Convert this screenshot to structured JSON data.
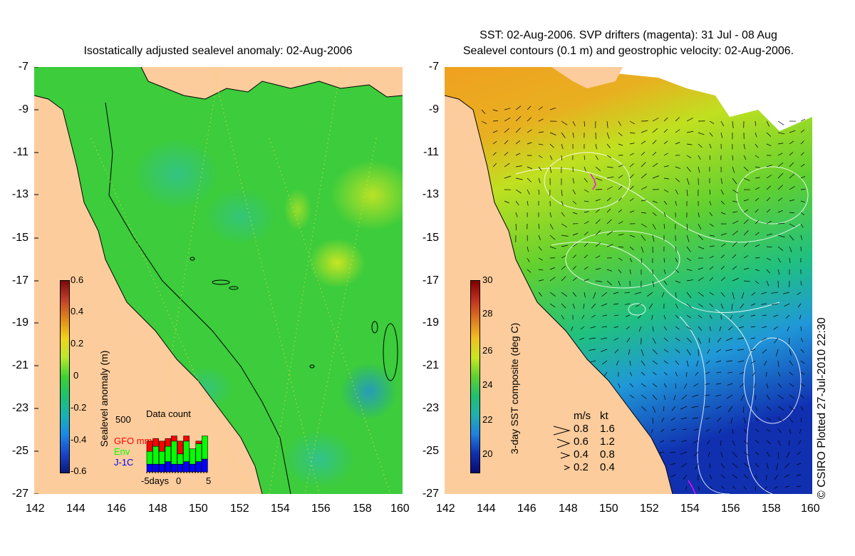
{
  "left_panel": {
    "title": "Isostatically adjusted sealevel anomaly: 02-Aug-2006",
    "colorbar": {
      "label": "Sealevel anomaly (m)",
      "ticks": [
        "0.6",
        "0.4",
        "0.2",
        "0",
        "-0.2",
        "-0.4",
        "-0.6"
      ],
      "colors": [
        "#7a0a0a",
        "#c0402a",
        "#e08a1a",
        "#f2d21a",
        "#b8e830",
        "#3cd232",
        "#1fc070",
        "#1ab2b2",
        "#1a8ae6",
        "#1a46c8",
        "#0a1a78"
      ]
    },
    "data_count": {
      "title": "Data count",
      "max_label": "500",
      "legend": [
        {
          "label": "GFO mm",
          "color": "#ff0000"
        },
        {
          "label": "Env",
          "color": "#00ff00"
        },
        {
          "label": "J-1C",
          "color": "#0000ff"
        }
      ],
      "xlabels": [
        "-5days",
        "0",
        "5"
      ],
      "bars": [
        {
          "gfo": 0.2,
          "env": 0.25,
          "j1c": 0.15
        },
        {
          "gfo": 0.15,
          "env": 0.35,
          "j1c": 0.15
        },
        {
          "gfo": 0.2,
          "env": 0.25,
          "j1c": 0.15
        },
        {
          "gfo": 0.15,
          "env": 0.3,
          "j1c": 0.2
        },
        {
          "gfo": 0.1,
          "env": 0.45,
          "j1c": 0.15
        },
        {
          "gfo": 0.25,
          "env": 0.2,
          "j1c": 0.15
        },
        {
          "gfo": 0.1,
          "env": 0.4,
          "j1c": 0.2
        },
        {
          "gfo": 0.0,
          "env": 0.3,
          "j1c": 0.15
        },
        {
          "gfo": 0.05,
          "env": 0.35,
          "j1c": 0.2
        },
        {
          "gfo": 0.0,
          "env": 0.45,
          "j1c": 0.25
        }
      ]
    }
  },
  "right_panel": {
    "title_line1": "SST: 02-Aug-2006. SVP drifters (magenta): 31 Jul - 08 Aug",
    "title_line2": "Sealevel contours (0.1 m) and geostrophic velocity: 02-Aug-2006.",
    "colorbar": {
      "label": "3-day SST composite (deg C)",
      "ticks": [
        "30",
        "28",
        "26",
        "24",
        "22",
        "20"
      ],
      "colors": [
        "#800000",
        "#c03020",
        "#e07820",
        "#f0c020",
        "#c8e820",
        "#60d030",
        "#20c070",
        "#20b0b0",
        "#2080e0",
        "#1030b0",
        "#0a0a70"
      ]
    },
    "velocity_legend": {
      "header_ms": "m/s",
      "header_kt": "kt",
      "rows": [
        {
          "ms": "0.8",
          "kt": "1.6"
        },
        {
          "ms": "0.6",
          "kt": "1.2"
        },
        {
          "ms": "0.4",
          "kt": "0.8"
        },
        {
          "ms": "0.2",
          "kt": "0.4"
        }
      ]
    },
    "credit": "© CSIRO Plotted 27-Jul-2010 22:30"
  },
  "axes": {
    "lat_ticks": [
      "-7",
      "-9",
      "-11",
      "-13",
      "-15",
      "-17",
      "-19",
      "-21",
      "-23",
      "-25",
      "-27"
    ],
    "lon_ticks": [
      "142",
      "144",
      "146",
      "148",
      "150",
      "152",
      "154",
      "156",
      "158",
      "160"
    ]
  },
  "colors": {
    "land": "#fccc9c",
    "ocean_base": "#3ccc3c",
    "contour": "#ffffff",
    "coast": "#000000",
    "drifter": "#ff00ff"
  }
}
